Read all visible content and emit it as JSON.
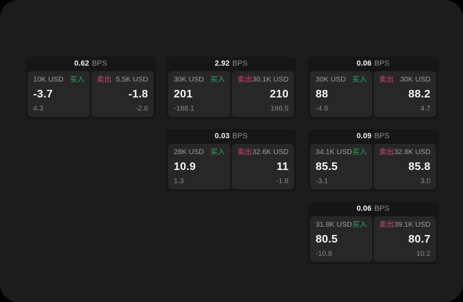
{
  "labels": {
    "bps_unit": "BPS",
    "buy": "买入",
    "sell": "卖出"
  },
  "colors": {
    "buy": "#35a467",
    "sell": "#d2486c",
    "canvas_bg": "#1c1c1c",
    "card_bg": "#161616",
    "panel_bg": "#272727"
  },
  "cards": [
    {
      "row": 1,
      "col": 1,
      "bps": "0.62",
      "buy": {
        "amount": "10K USD",
        "price": "-3.7",
        "delta": "4.3"
      },
      "sell": {
        "amount": "5.5K USD",
        "price": "-1.8",
        "delta": "-2.6"
      }
    },
    {
      "row": 1,
      "col": 2,
      "bps": "2.92",
      "buy": {
        "amount": "30K USD",
        "price": "201",
        "delta": "-188.1"
      },
      "sell": {
        "amount": "30.1K USD",
        "price": "210",
        "delta": "196.5"
      }
    },
    {
      "row": 1,
      "col": 3,
      "bps": "0.06",
      "buy": {
        "amount": "30K USD",
        "price": "88",
        "delta": "-4.9"
      },
      "sell": {
        "amount": "30K USD",
        "price": "88.2",
        "delta": "4.7"
      }
    },
    {
      "row": 2,
      "col": 2,
      "bps": "0.03",
      "buy": {
        "amount": "28K USD",
        "price": "10.9",
        "delta": "1.3"
      },
      "sell": {
        "amount": "32.6K USD",
        "price": "11",
        "delta": "-1.8"
      }
    },
    {
      "row": 2,
      "col": 3,
      "bps": "0.09",
      "buy": {
        "amount": "34.1K USD",
        "price": "85.5",
        "delta": "-3.1"
      },
      "sell": {
        "amount": "32.8K USD",
        "price": "85.8",
        "delta": "3.0"
      }
    },
    {
      "row": 3,
      "col": 3,
      "bps": "0.06",
      "buy": {
        "amount": "31.8K USD",
        "price": "80.5",
        "delta": "-10.8"
      },
      "sell": {
        "amount": "39.1K USD",
        "price": "80.7",
        "delta": "10.2"
      }
    }
  ]
}
